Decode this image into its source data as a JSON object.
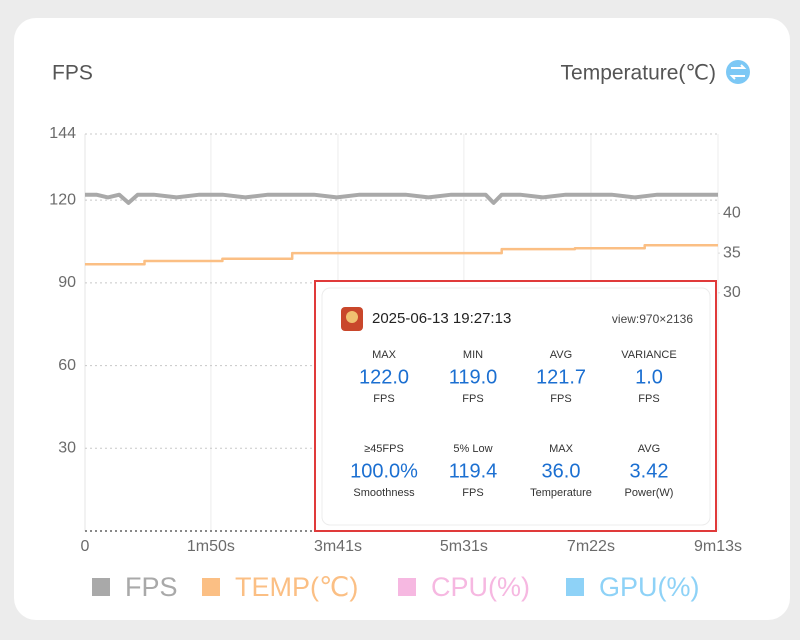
{
  "chart_data": {
    "type": "line",
    "ylabel": "FPS",
    "y2label": "Temperature(℃)",
    "xlim": [
      0,
      553
    ],
    "xticks": [
      0,
      {
        "value": 110,
        "label": "1m50s"
      },
      {
        "value": 221,
        "label": "3m41s"
      },
      {
        "value": 331,
        "label": "5m31s"
      },
      {
        "value": 442,
        "label": "7m22s"
      },
      {
        "value": 553,
        "label": "9m13s"
      }
    ],
    "ylim": [
      0,
      144
    ],
    "yticks": [
      30,
      60,
      90,
      120,
      144
    ],
    "y2lim": [
      0,
      50
    ],
    "y2ticks": [
      30,
      35,
      40
    ],
    "grid": true,
    "series": [
      {
        "name": "FPS",
        "color": "#a9a9a9",
        "x": [
          0,
          10,
          20,
          30,
          38,
          46,
          60,
          80,
          100,
          120,
          140,
          160,
          180,
          200,
          220,
          240,
          260,
          280,
          300,
          320,
          340,
          350,
          357,
          364,
          380,
          400,
          420,
          440,
          460,
          480,
          500,
          520,
          540,
          553
        ],
        "values": [
          122,
          122,
          121,
          122,
          119,
          122,
          122,
          121,
          122,
          122,
          121,
          122,
          122,
          122,
          121,
          122,
          122,
          122,
          121,
          122,
          122,
          122,
          119,
          122,
          122,
          121,
          122,
          122,
          122,
          121,
          122,
          122,
          122,
          122
        ]
      },
      {
        "name": "TEMP(℃)",
        "color": "#fbbf84",
        "axis": "y2",
        "x": [
          0,
          52,
          52,
          120,
          120,
          181,
          181,
          364,
          364,
          428,
          428,
          489,
          489,
          553
        ],
        "values": [
          33.6,
          33.6,
          34.0,
          34.0,
          34.3,
          34.3,
          35.0,
          35.0,
          35.5,
          35.5,
          35.6,
          35.6,
          36.0,
          36.0
        ]
      },
      {
        "name": "CPU(%)",
        "color": "#f6b8e1"
      },
      {
        "name": "GPU(%)",
        "color": "#8ed2f7"
      }
    ]
  },
  "overlay": {
    "timestamp": "2025-06-13 19:27:13",
    "view": "view:970×2136",
    "stats": [
      {
        "label": "MAX",
        "value": "122.0",
        "unit": "FPS"
      },
      {
        "label": "MIN",
        "value": "119.0",
        "unit": "FPS"
      },
      {
        "label": "AVG",
        "value": "121.7",
        "unit": "FPS"
      },
      {
        "label": "VARIANCE",
        "value": "1.0",
        "unit": "FPS"
      },
      {
        "label": "≥45FPS",
        "value": "100.0%",
        "unit": "Smoothness"
      },
      {
        "label": "5% Low",
        "value": "119.4",
        "unit": "FPS"
      },
      {
        "label": "MAX",
        "value": "36.0",
        "unit": "Temperature"
      },
      {
        "label": "AVG",
        "value": "3.42",
        "unit": "Power(W)"
      }
    ]
  }
}
